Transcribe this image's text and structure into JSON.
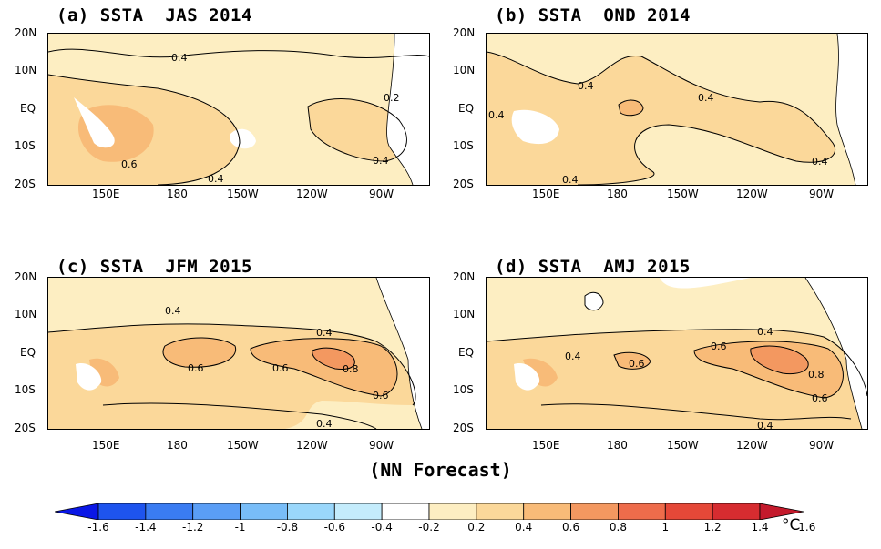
{
  "panels": [
    {
      "title": "(a) SSTA  JAS 2014",
      "contour_labels": [
        "0.4",
        "0.2",
        "0.6",
        "0.4",
        "0.4"
      ]
    },
    {
      "title": "(b) SSTA  OND 2014",
      "contour_labels": [
        "0.4",
        "0.4",
        "0.4",
        "0.4",
        "0.4"
      ]
    },
    {
      "title": "(c) SSTA  JFM 2015",
      "contour_labels": [
        "0.4",
        "0.4",
        "0.6",
        "0.6",
        "0.8",
        "0.6",
        "0.4"
      ]
    },
    {
      "title": "(d) SSTA  AMJ 2015",
      "contour_labels": [
        "0.4",
        "0.4",
        "0.6",
        "0.6",
        "0.8",
        "0.6",
        "0.4"
      ]
    }
  ],
  "axes": {
    "lat_ticks": [
      "20N",
      "10N",
      "EQ",
      "10S",
      "20S"
    ],
    "lon_ticks": [
      "150E",
      "180",
      "150W",
      "120W",
      "90W"
    ]
  },
  "footer": "(NN Forecast)",
  "colorbar": {
    "labels": [
      "-1.6",
      "-1.4",
      "-1.2",
      "-1",
      "-0.8",
      "-0.6",
      "-0.4",
      "-0.2",
      "0.2",
      "0.4",
      "0.6",
      "0.8",
      "1",
      "1.2",
      "1.4",
      "1.6"
    ],
    "colors": [
      "#0a17e6",
      "#1e54ee",
      "#3a7cf2",
      "#5a9ef6",
      "#78bdf8",
      "#9ad7fb",
      "#c4ecfc",
      "#ffffff",
      "#fdeec2",
      "#fbd89a",
      "#f8bb78",
      "#f39860",
      "#ee6c4b",
      "#e54838",
      "#d62c30",
      "#c41a2c"
    ],
    "unit": "°C"
  }
}
